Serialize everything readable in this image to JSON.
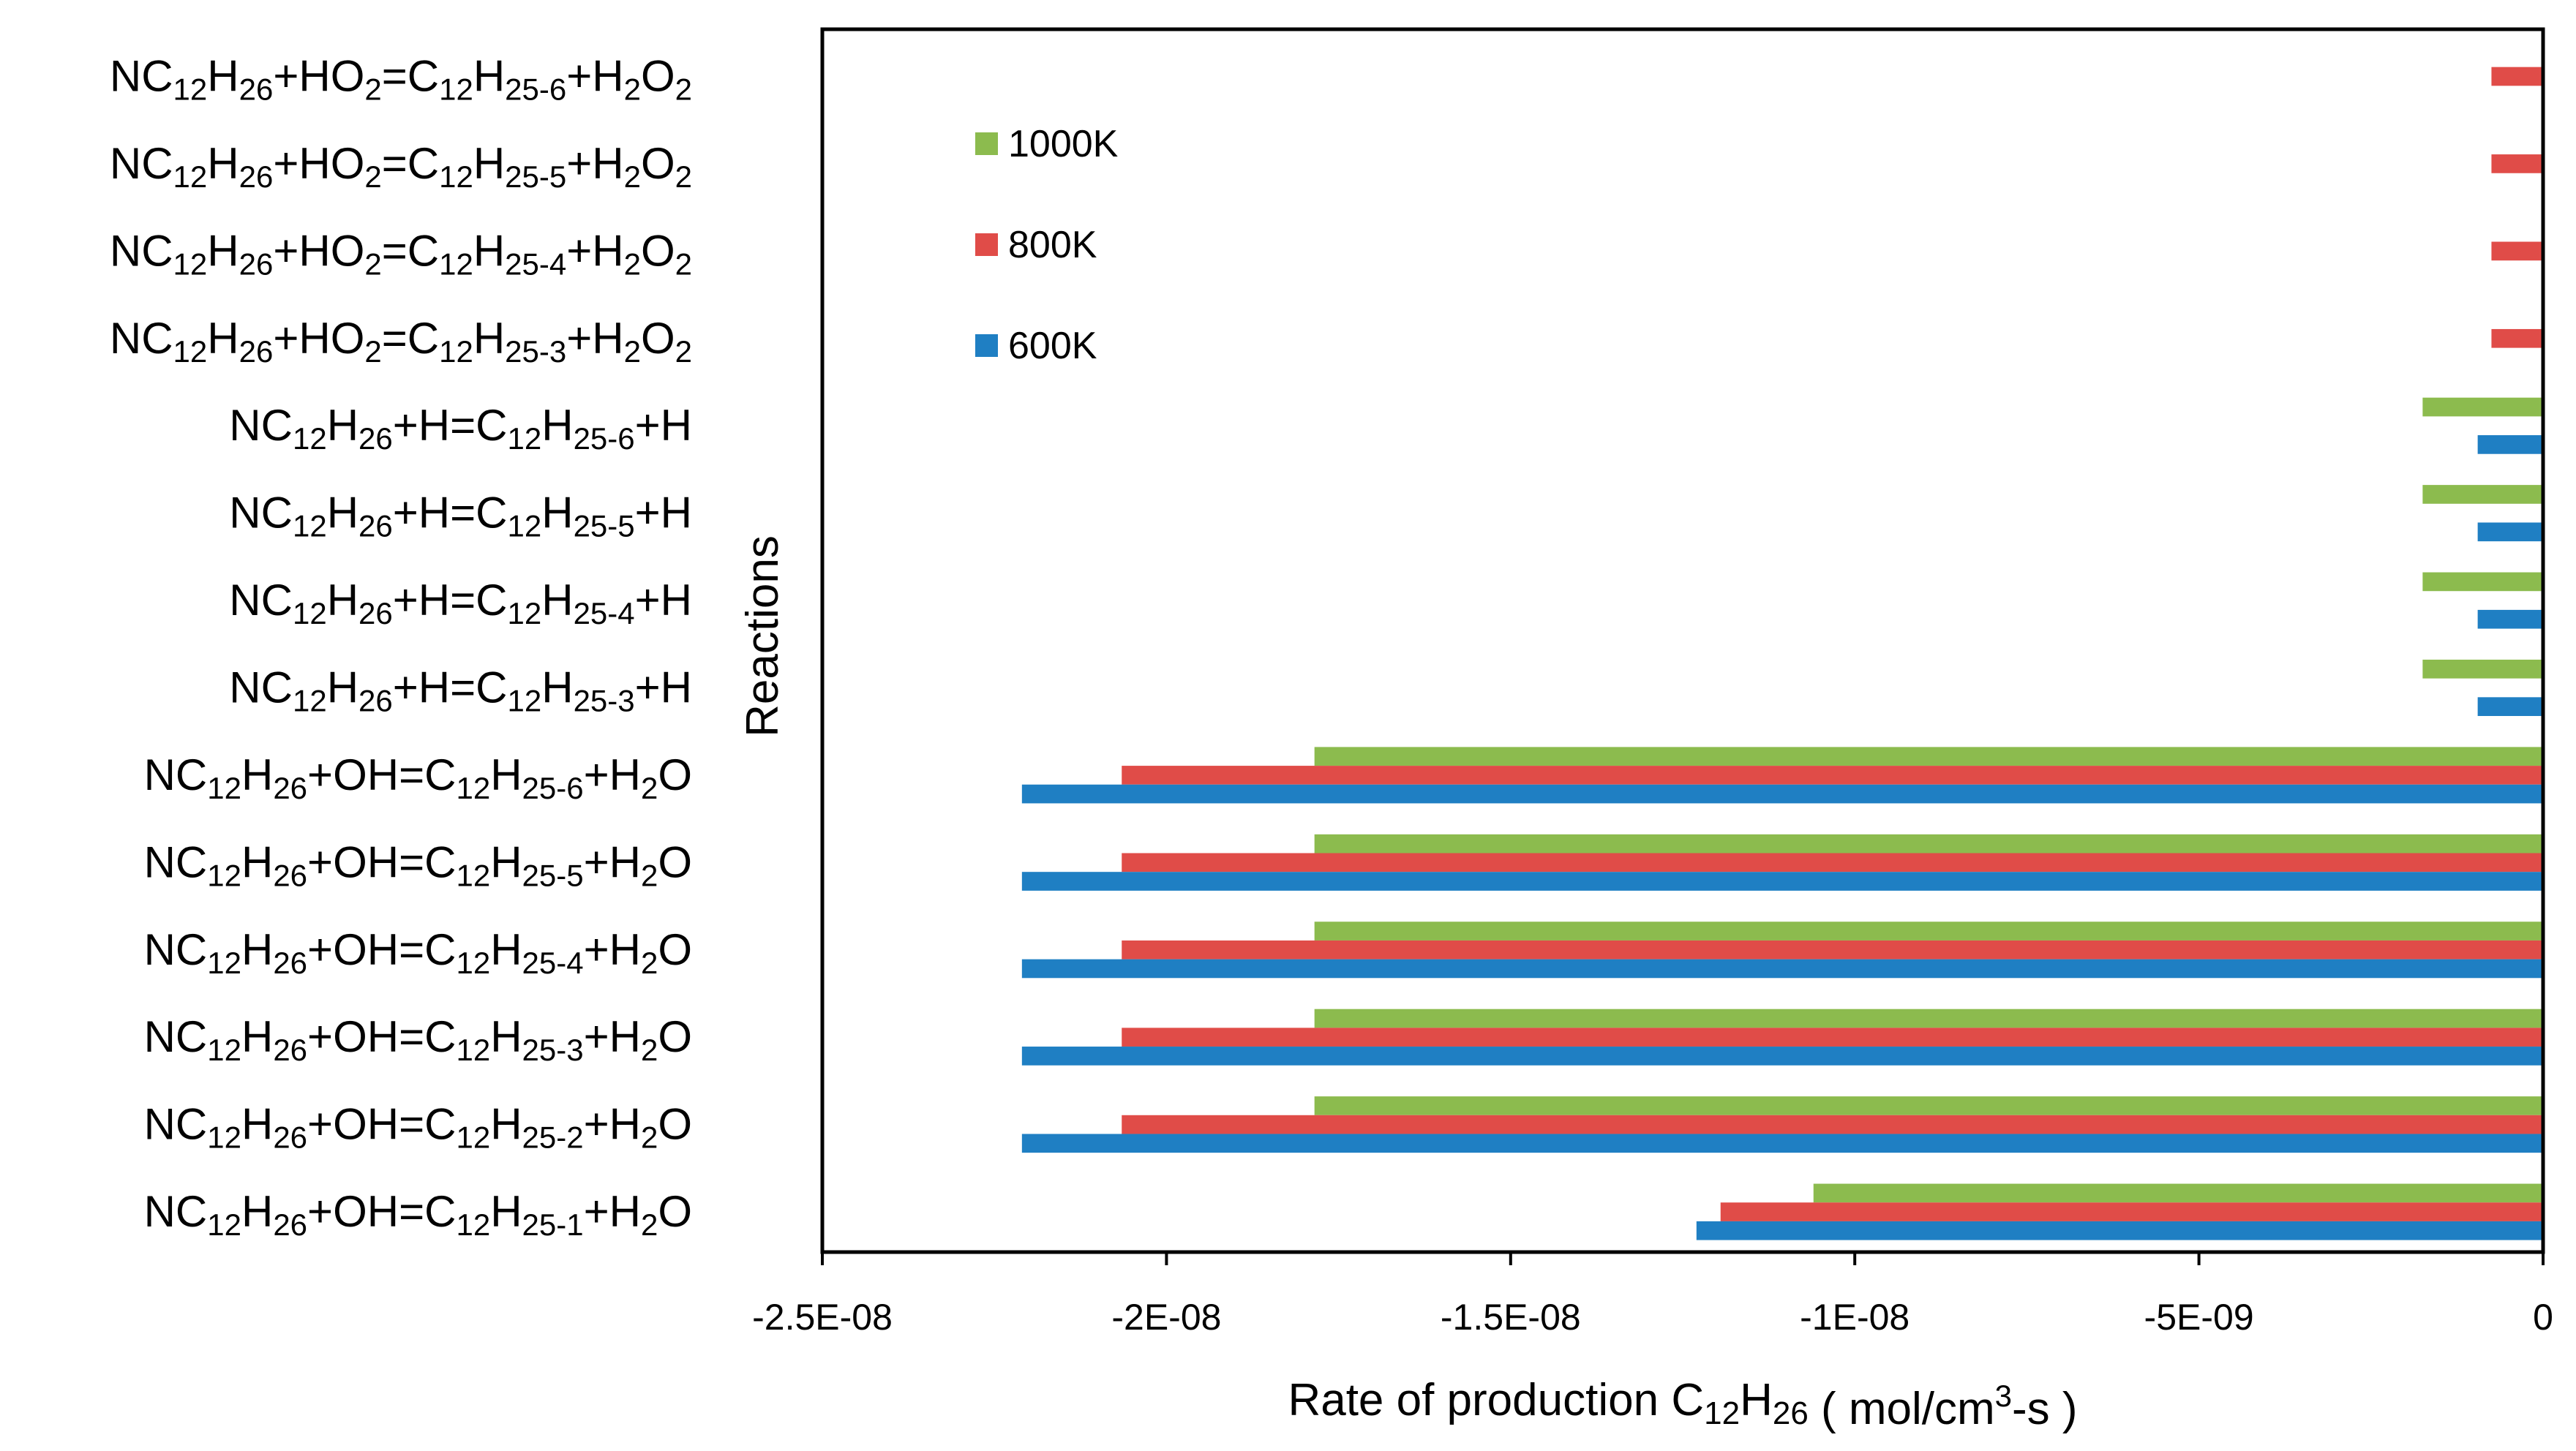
{
  "chart_data": {
    "type": "bar",
    "orientation": "horizontal",
    "xlabel": "Rate of production C12H26 ( mol/cm3-s )",
    "ylabel": "Reactions",
    "xlim": [
      -2.5e-08,
      0
    ],
    "xticks": [
      {
        "value": -2.5e-08,
        "label": "-2.5E-08"
      },
      {
        "value": -2e-08,
        "label": "-2E-08"
      },
      {
        "value": -1.5e-08,
        "label": "-1.5E-08"
      },
      {
        "value": -1e-08,
        "label": "-1E-08"
      },
      {
        "value": -5e-09,
        "label": "-5E-09"
      },
      {
        "value": 0,
        "label": "0"
      }
    ],
    "legend_position": "top-left",
    "categories": [
      "NC12H26+HO2=C12H25-6+H2O2",
      "NC12H26+HO2=C12H25-5+H2O2",
      "NC12H26+HO2=C12H25-4+H2O2",
      "NC12H26+HO2=C12H25-3+H2O2",
      "NC12H26+H=C12H25-6+H",
      "NC12H26+H=C12H25-5+H",
      "NC12H26+H=C12H25-4+H",
      "NC12H26+H=C12H25-3+H",
      "NC12H26+OH=C12H25-6+H2O",
      "NC12H26+OH=C12H25-5+H2O",
      "NC12H26+OH=C12H25-4+H2O",
      "NC12H26+OH=C12H25-3+H2O",
      "NC12H26+OH=C12H25-2+H2O",
      "NC12H26+OH=C12H25-1+H2O"
    ],
    "series": [
      {
        "name": "1000K",
        "color": "#8cbb4e",
        "values": [
          0,
          0,
          0,
          0,
          -1.75e-09,
          -1.75e-09,
          -1.75e-09,
          -1.75e-09,
          -1.785e-08,
          -1.785e-08,
          -1.785e-08,
          -1.785e-08,
          -1.785e-08,
          -1.06e-08
        ]
      },
      {
        "name": "800K",
        "color": "#e04c48",
        "values": [
          -7.5e-10,
          -7.5e-10,
          -7.5e-10,
          -7.5e-10,
          0,
          0,
          0,
          0,
          -2.065e-08,
          -2.065e-08,
          -2.065e-08,
          -2.065e-08,
          -2.065e-08,
          -1.195e-08
        ]
      },
      {
        "name": "600K",
        "color": "#1f7fc3",
        "values": [
          0,
          0,
          0,
          0,
          -9.5e-10,
          -9.5e-10,
          -9.5e-10,
          -9.5e-10,
          -2.21e-08,
          -2.21e-08,
          -2.21e-08,
          -2.21e-08,
          -2.21e-08,
          -1.23e-08
        ]
      }
    ]
  }
}
